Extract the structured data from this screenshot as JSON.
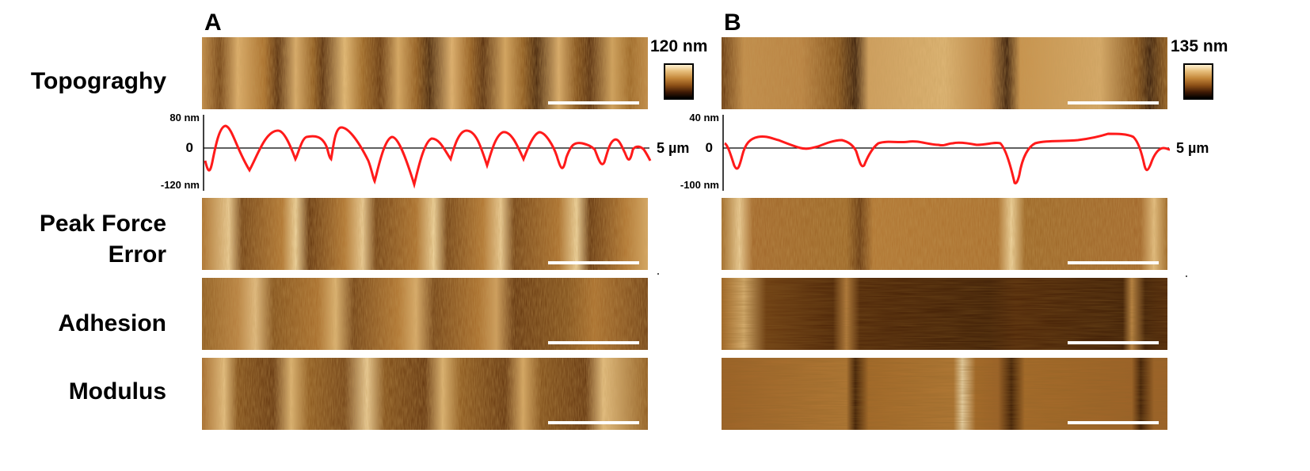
{
  "panels": [
    {
      "letter": "A",
      "topography_scale": "120 nm",
      "profile": {
        "y_max": "80 nm",
        "y_zero": "0",
        "y_min": "-120 nm",
        "x_end": "5 µm"
      },
      "images": [
        "topography",
        "peak-force-error",
        "adhesion",
        "modulus"
      ]
    },
    {
      "letter": "B",
      "topography_scale": "135 nm",
      "profile": {
        "y_max": "40 nm",
        "y_zero": "0",
        "y_min": "-100 nm",
        "x_end": "5 µm"
      },
      "images": [
        "topography",
        "peak-force-error",
        "adhesion",
        "modulus"
      ]
    }
  ],
  "row_labels": {
    "topography": "Topograghy",
    "peak_force_error_line1": "Peak Force",
    "peak_force_error_line2": "Error",
    "adhesion": "Adhesion",
    "modulus": "Modulus"
  },
  "colors": {
    "profile_line": "#ff1a1a",
    "axis": "#000000",
    "afm_light": "#e8c07e",
    "afm_mid": "#b07430",
    "afm_dark": "#3f1a05",
    "scalebar": "#ffffff"
  },
  "icons": {
    "colorbar": "afm-height-colorbar"
  }
}
